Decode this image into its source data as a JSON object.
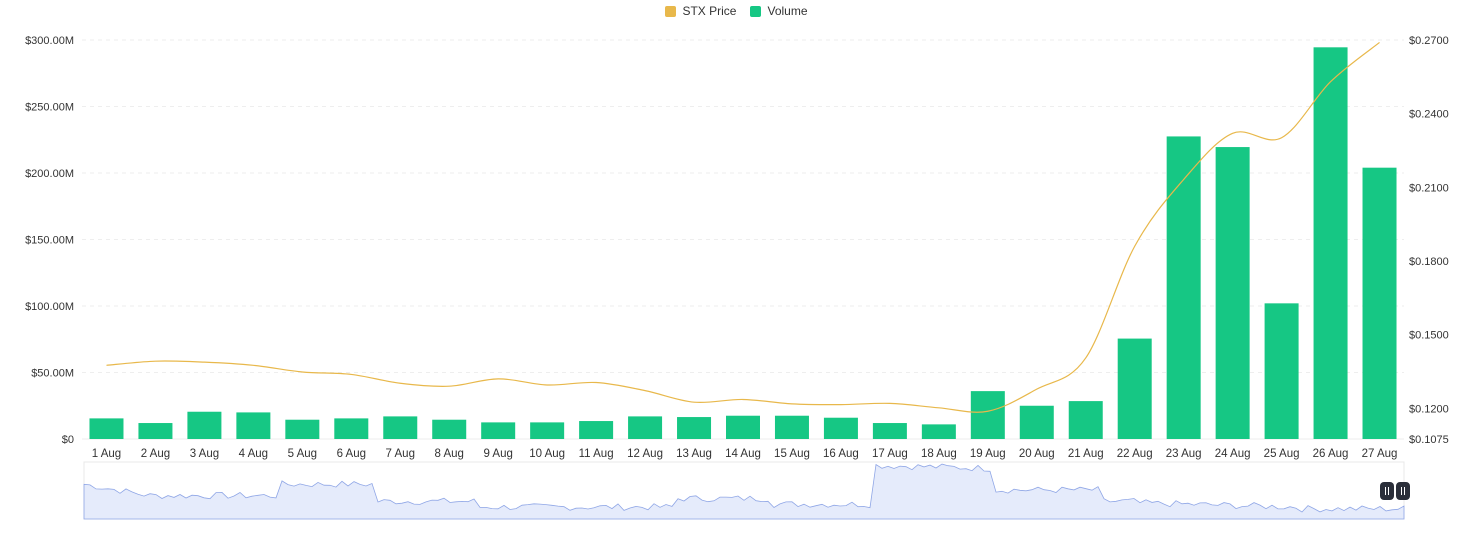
{
  "legend": {
    "price_label": "STX Price",
    "volume_label": "Volume",
    "price_color": "#E8B84B",
    "volume_color": "#16C784"
  },
  "chart_data": {
    "type": "bar",
    "categories": [
      "1 Aug",
      "2 Aug",
      "3 Aug",
      "4 Aug",
      "5 Aug",
      "6 Aug",
      "7 Aug",
      "8 Aug",
      "9 Aug",
      "10 Aug",
      "11 Aug",
      "12 Aug",
      "13 Aug",
      "14 Aug",
      "15 Aug",
      "16 Aug",
      "17 Aug",
      "18 Aug",
      "19 Aug",
      "20 Aug",
      "21 Aug",
      "22 Aug",
      "23 Aug",
      "24 Aug",
      "25 Aug",
      "26 Aug",
      "27 Aug"
    ],
    "series": [
      {
        "name": "Volume",
        "type": "bar",
        "axis": "left",
        "color": "#16C784",
        "values": [
          15.5,
          12,
          20.5,
          20,
          14.5,
          15.5,
          17,
          14.5,
          12.5,
          12.5,
          13.5,
          17,
          16.5,
          17.5,
          17.5,
          16,
          12,
          11,
          36,
          25,
          28.5,
          75.5,
          227.5,
          219.5,
          102,
          294.5,
          204
        ]
      },
      {
        "name": "STX Price",
        "type": "line",
        "axis": "right",
        "color": "#E8B84B",
        "values": [
          0.1375,
          0.1392,
          0.1388,
          0.1375,
          0.1348,
          0.1338,
          0.1302,
          0.129,
          0.132,
          0.1295,
          0.1305,
          0.1272,
          0.1225,
          0.1236,
          0.1218,
          0.1215,
          0.122,
          0.1202,
          0.1188,
          0.1278,
          0.1405,
          0.186,
          0.2132,
          0.232,
          0.2302,
          0.253,
          0.269
        ]
      }
    ],
    "y_left": {
      "ticks": [
        "$300.00M",
        "$250.00M",
        "$200.00M",
        "$150.00M",
        "$100.00M",
        "$50.00M",
        "$0"
      ],
      "range": [
        0,
        300
      ]
    },
    "y_right": {
      "ticks": [
        "$0.2700",
        "$0.2400",
        "$0.2100",
        "$0.1800",
        "$0.1500",
        "$0.1200",
        "$0.1075"
      ],
      "range": [
        0.1075,
        0.27
      ]
    },
    "grid": true,
    "legend_position": "top-center"
  }
}
